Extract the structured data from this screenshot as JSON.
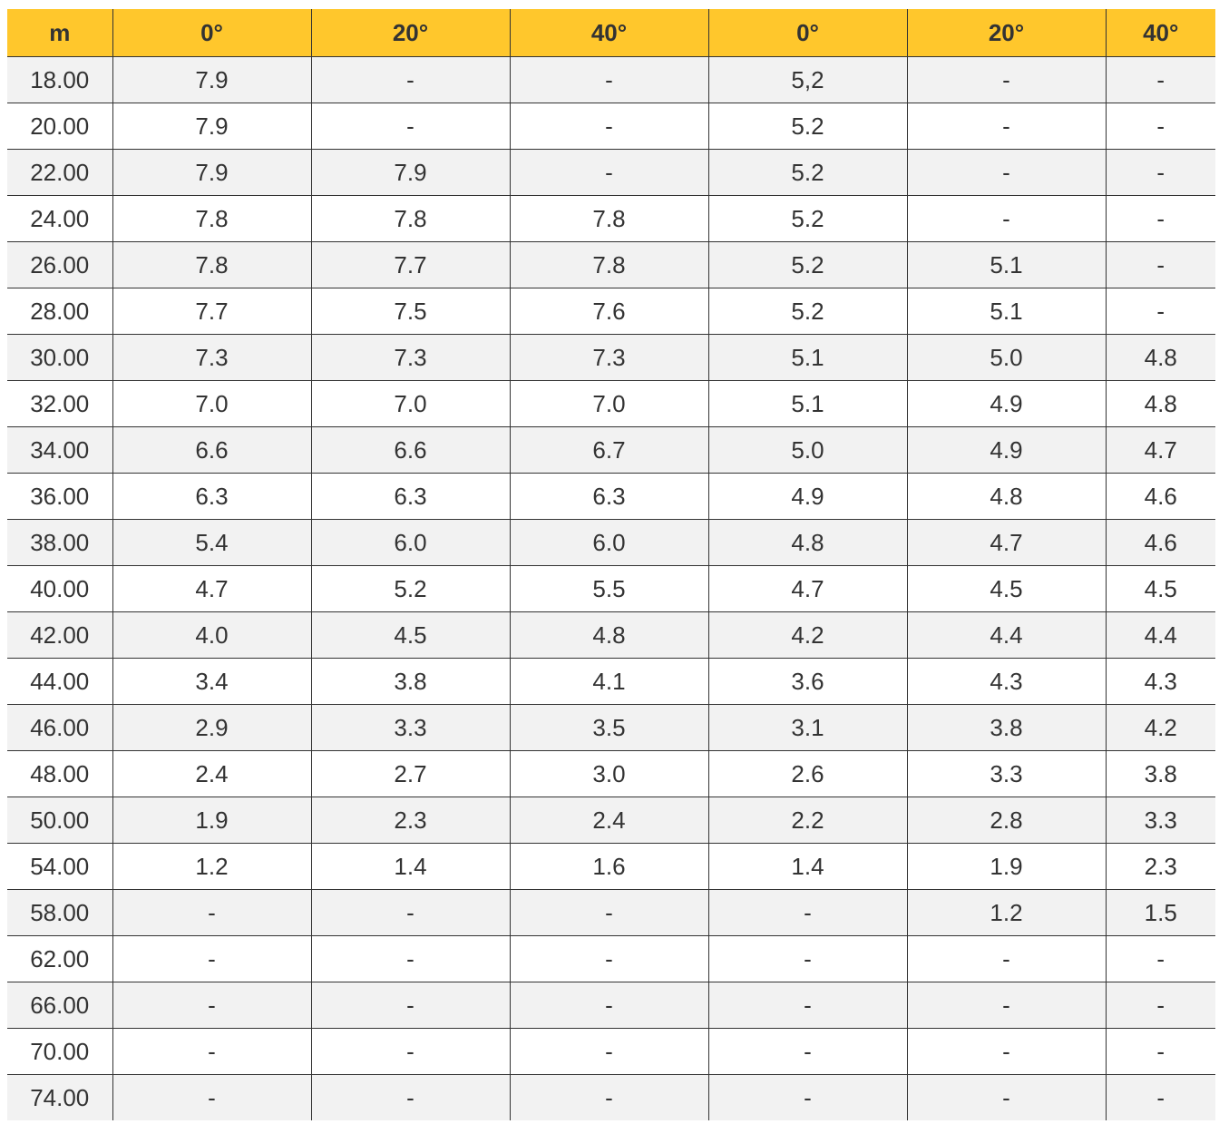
{
  "table": {
    "header": [
      "m",
      "0°",
      "20°",
      "40°",
      "0°",
      "20°",
      "40°"
    ],
    "rows": [
      [
        "18.00",
        "7.9",
        "-",
        "-",
        "5,2",
        "-",
        "-"
      ],
      [
        "20.00",
        "7.9",
        "-",
        "-",
        "5.2",
        "-",
        "-"
      ],
      [
        "22.00",
        "7.9",
        "7.9",
        "-",
        "5.2",
        "-",
        "-"
      ],
      [
        "24.00",
        "7.8",
        "7.8",
        "7.8",
        "5.2",
        "-",
        "-"
      ],
      [
        "26.00",
        "7.8",
        "7.7",
        "7.8",
        "5.2",
        "5.1",
        "-"
      ],
      [
        "28.00",
        "7.7",
        "7.5",
        "7.6",
        "5.2",
        "5.1",
        "-"
      ],
      [
        "30.00",
        "7.3",
        "7.3",
        "7.3",
        "5.1",
        "5.0",
        "4.8"
      ],
      [
        "32.00",
        "7.0",
        "7.0",
        "7.0",
        "5.1",
        "4.9",
        "4.8"
      ],
      [
        "34.00",
        "6.6",
        "6.6",
        "6.7",
        "5.0",
        "4.9",
        "4.7"
      ],
      [
        "36.00",
        "6.3",
        "6.3",
        "6.3",
        "4.9",
        "4.8",
        "4.6"
      ],
      [
        "38.00",
        "5.4",
        "6.0",
        "6.0",
        "4.8",
        "4.7",
        "4.6"
      ],
      [
        "40.00",
        "4.7",
        "5.2",
        "5.5",
        "4.7",
        "4.5",
        "4.5"
      ],
      [
        "42.00",
        "4.0",
        "4.5",
        "4.8",
        "4.2",
        "4.4",
        "4.4"
      ],
      [
        "44.00",
        "3.4",
        "3.8",
        "4.1",
        "3.6",
        "4.3",
        "4.3"
      ],
      [
        "46.00",
        "2.9",
        "3.3",
        "3.5",
        "3.1",
        "3.8",
        "4.2"
      ],
      [
        "48.00",
        "2.4",
        "2.7",
        "3.0",
        "2.6",
        "3.3",
        "3.8"
      ],
      [
        "50.00",
        "1.9",
        "2.3",
        "2.4",
        "2.2",
        "2.8",
        "3.3"
      ],
      [
        "54.00",
        "1.2",
        "1.4",
        "1.6",
        "1.4",
        "1.9",
        "2.3"
      ],
      [
        "58.00",
        "-",
        "-",
        "-",
        "-",
        "1.2",
        "1.5"
      ],
      [
        "62.00",
        "-",
        "-",
        "-",
        "-",
        "-",
        "-"
      ],
      [
        "66.00",
        "-",
        "-",
        "-",
        "-",
        "-",
        "-"
      ],
      [
        "70.00",
        "-",
        "-",
        "-",
        "-",
        "-",
        "-"
      ],
      [
        "74.00",
        "-",
        "-",
        "-",
        "-",
        "-",
        "-"
      ]
    ]
  }
}
